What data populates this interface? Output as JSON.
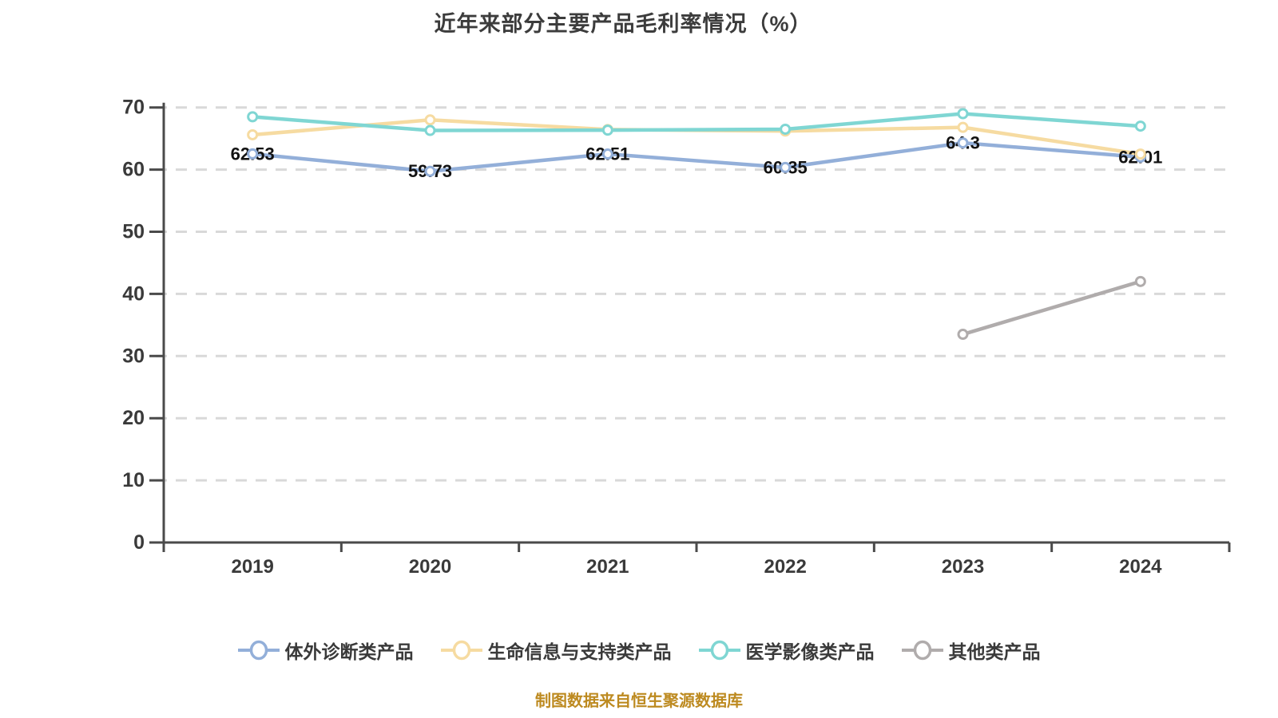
{
  "chart_data": {
    "type": "line",
    "title": "近年来部分主要产品毛利率情况（%）",
    "categories": [
      "2019",
      "2020",
      "2021",
      "2022",
      "2023",
      "2024"
    ],
    "series": [
      {
        "name": "体外诊断类产品",
        "color": "#93afd9",
        "values": [
          62.53,
          59.73,
          62.51,
          60.35,
          64.3,
          62.01
        ],
        "labeled": true
      },
      {
        "name": "生命信息与支持类产品",
        "color": "#f6dba1",
        "values": [
          65.6,
          68.0,
          66.45,
          66.2,
          66.8,
          62.5
        ],
        "labeled": false
      },
      {
        "name": "医学影像类产品",
        "color": "#7fd6d3",
        "values": [
          68.5,
          66.3,
          66.35,
          66.5,
          69.0,
          67.0
        ],
        "labeled": false
      },
      {
        "name": "其他类产品",
        "color": "#b0acac",
        "values": [
          null,
          null,
          null,
          null,
          33.5,
          42.0
        ],
        "labeled": false
      }
    ],
    "xlabel": "",
    "ylabel": "",
    "ylim": [
      0,
      70
    ],
    "ytick_step": 10,
    "grid": "horizontal-dashed",
    "legend_position": "bottom",
    "value_labels": [
      "62.53",
      "59.73",
      "62.51",
      "60.35",
      "64.3",
      "62.01"
    ]
  },
  "footer": {
    "source_note": "制图数据来自恒生聚源数据库"
  },
  "colors": {
    "grid": "#d9d9d9",
    "axis": "#4a4a4a",
    "tick_label": "#3a3a3a",
    "title": "#3c3c3c",
    "value_label": "#121212",
    "caption": "#bd8a20",
    "marker_fill": "#ffffff"
  }
}
